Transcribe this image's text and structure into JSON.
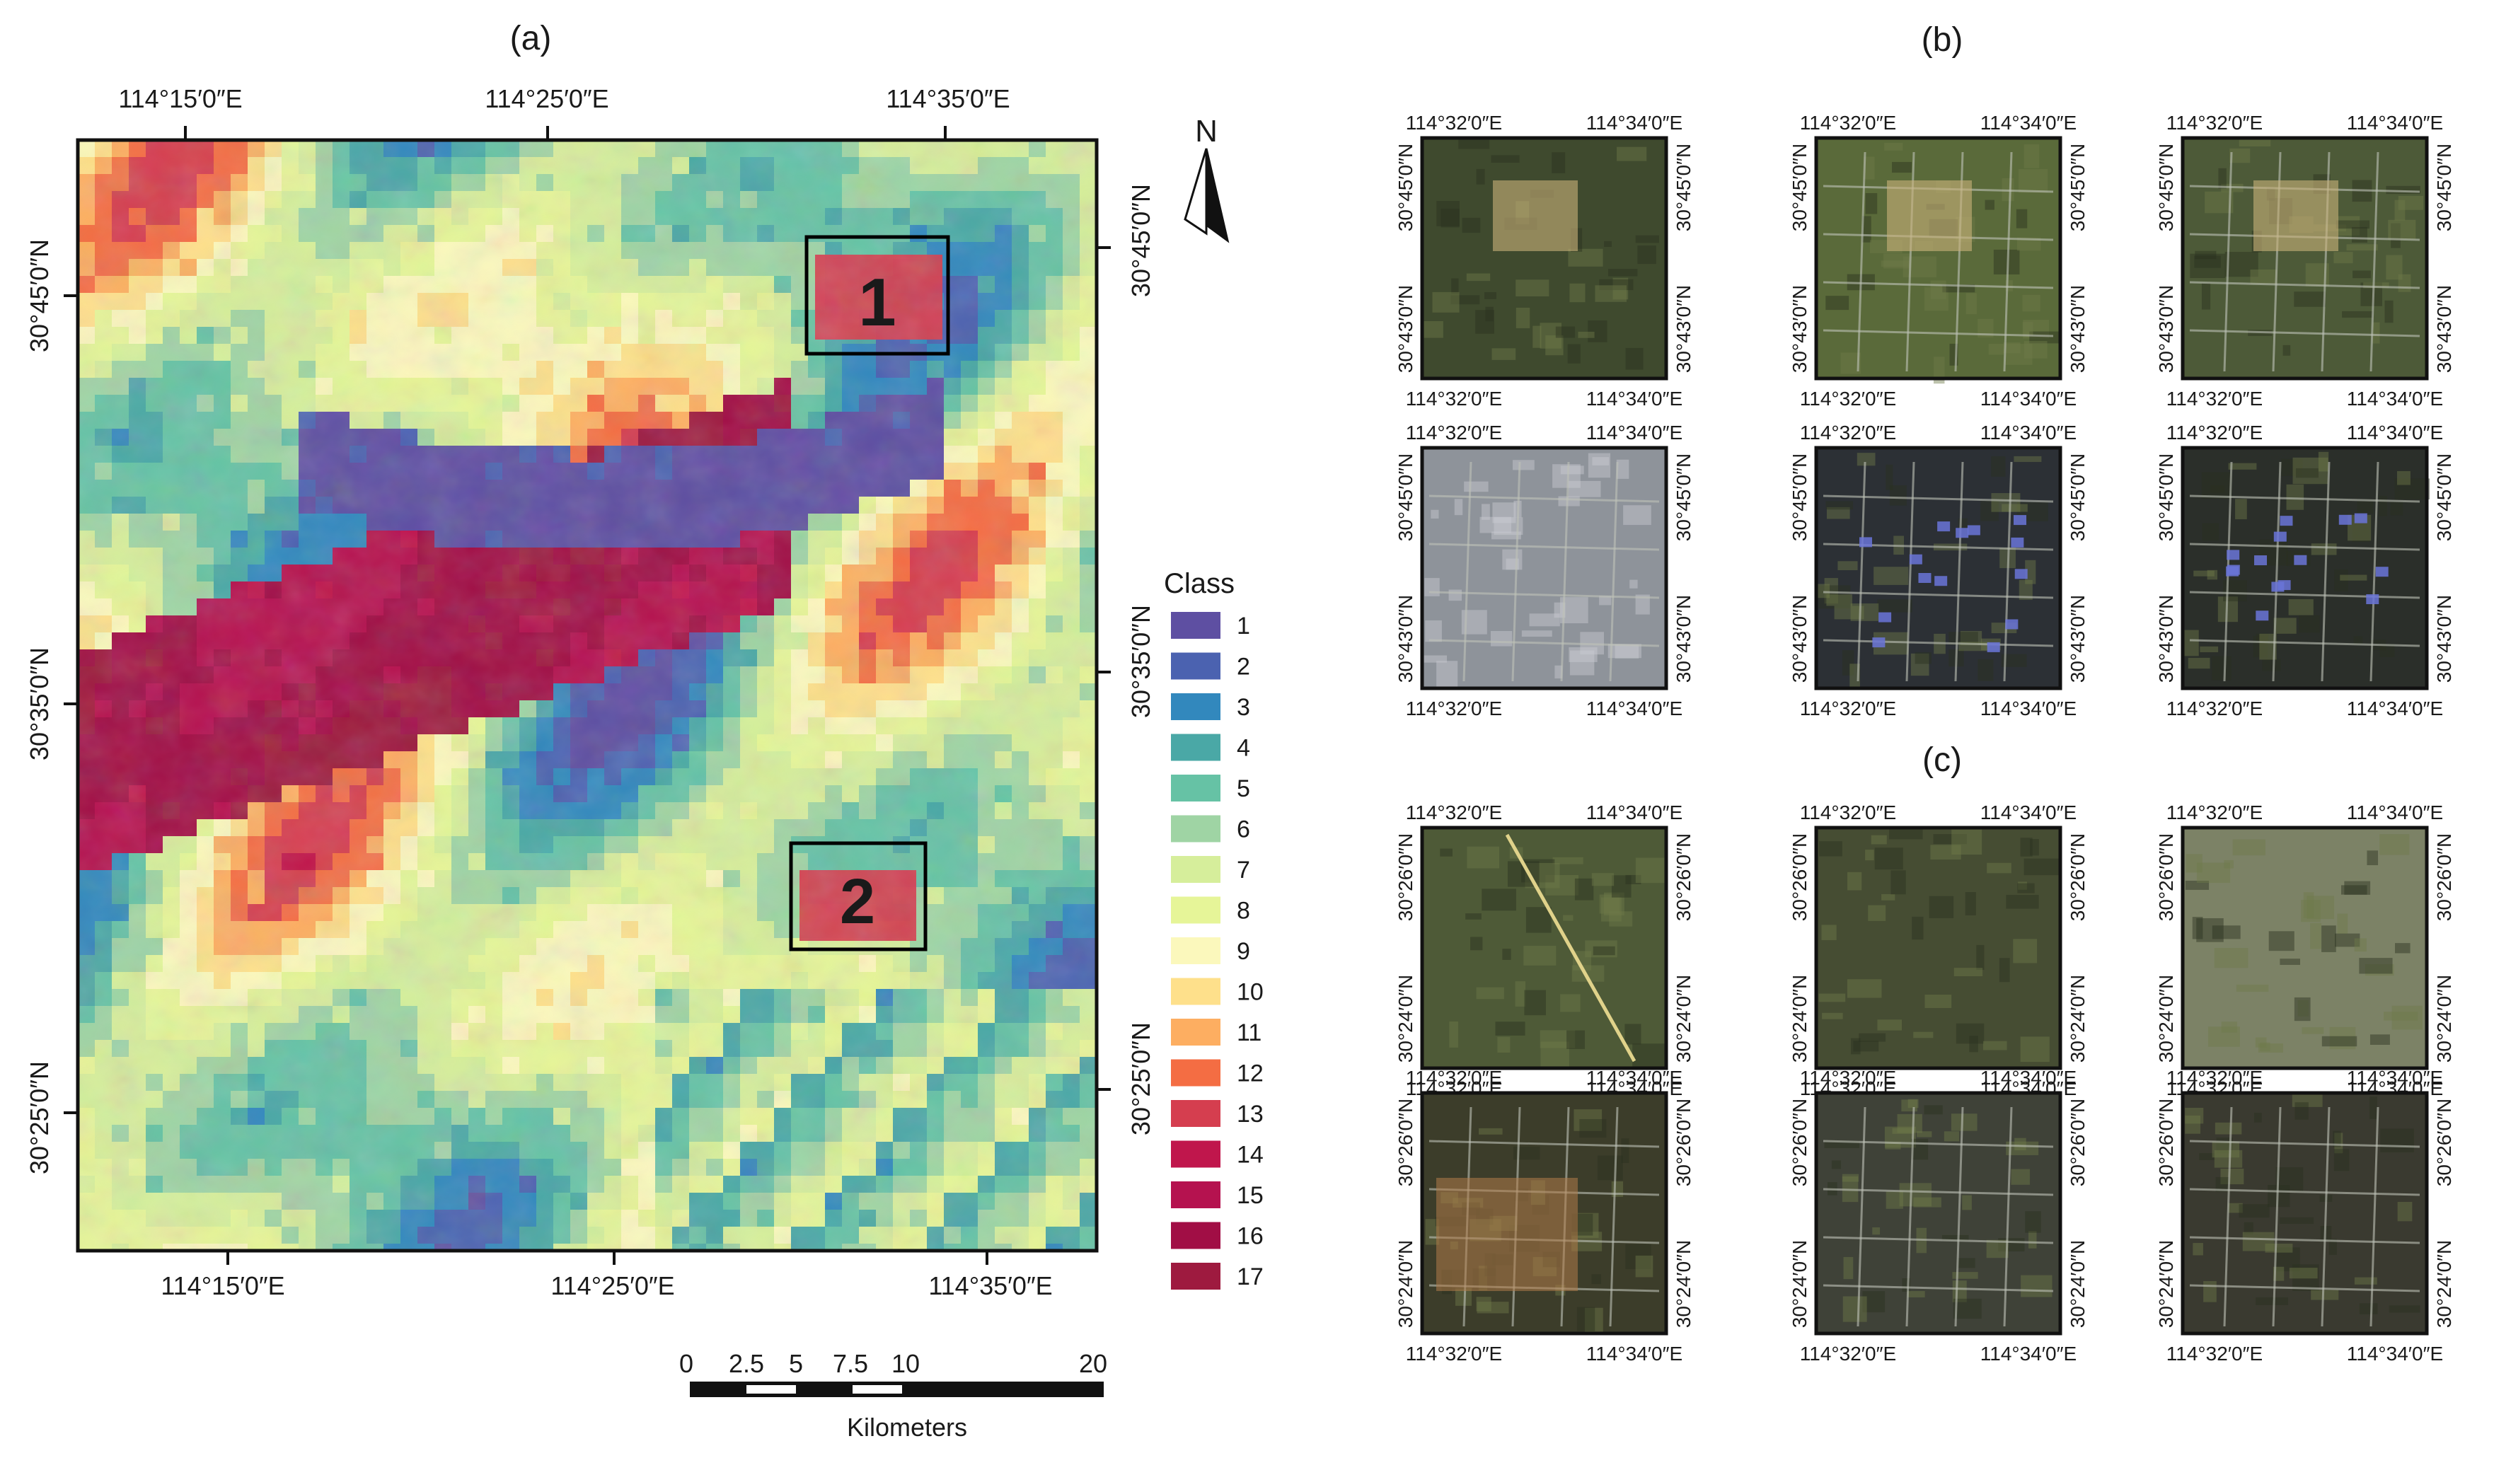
{
  "panel_labels": {
    "a": "(a)",
    "b": "(b)",
    "c": "(c)"
  },
  "map_a": {
    "lon_top": [
      "114°15′0″E",
      "114°25′0″E",
      "114°35′0″E"
    ],
    "lon_bottom": [
      "114°15′0″E",
      "114°25′0″E",
      "114°35′0″E"
    ],
    "lat_left": [
      "30°45′0″N",
      "30°35′0″N",
      "30°25′0″N"
    ],
    "lat_right": [
      "30°45′0″N",
      "30°35′0″N",
      "30°25′0″N"
    ],
    "region_labels": [
      "1",
      "2"
    ],
    "north_label": "N",
    "legend_title": "Class",
    "classes": [
      {
        "label": "1",
        "color": "#5e4fa2"
      },
      {
        "label": "2",
        "color": "#4b62b0"
      },
      {
        "label": "3",
        "color": "#3288bd"
      },
      {
        "label": "4",
        "color": "#4aa8a6"
      },
      {
        "label": "5",
        "color": "#66c2a5"
      },
      {
        "label": "6",
        "color": "#9fd4a4"
      },
      {
        "label": "7",
        "color": "#d6ee9b"
      },
      {
        "label": "8",
        "color": "#e6f598"
      },
      {
        "label": "9",
        "color": "#fbf8bc"
      },
      {
        "label": "10",
        "color": "#fee08b"
      },
      {
        "label": "11",
        "color": "#fdae61"
      },
      {
        "label": "12",
        "color": "#f46d43"
      },
      {
        "label": "13",
        "color": "#d53e4f"
      },
      {
        "label": "14",
        "color": "#c0164c"
      },
      {
        "label": "15",
        "color": "#b5124f"
      },
      {
        "label": "16",
        "color": "#a10e45"
      },
      {
        "label": "17",
        "color": "#9e1a3f"
      }
    ],
    "scalebar": {
      "ticks": [
        "0",
        "2.5",
        "5",
        "7.5",
        "10",
        "20"
      ],
      "unit": "Kilometers"
    }
  },
  "thumbs": {
    "lon_left": "114°32′0″E",
    "lon_right": "114°34′0″E",
    "b_lat_top": "30°45′0″N",
    "b_lat_bottom": "30°43′0″N",
    "c_lat_top": "30°26′0″N",
    "c_lat_bottom": "30°24′0″N"
  }
}
